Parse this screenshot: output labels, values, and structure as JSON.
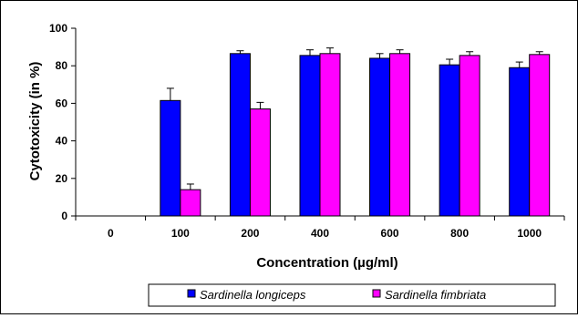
{
  "chart_data": {
    "type": "bar",
    "xlabel": "Concentration (µg/ml)",
    "ylabel": "Cytotoxicity (in %)",
    "ylim": [
      0,
      100
    ],
    "yticks": [
      "0",
      "20",
      "40",
      "60",
      "80",
      "100"
    ],
    "categories": [
      "0",
      "100",
      "200",
      "400",
      "600",
      "800",
      "1000"
    ],
    "grid": false,
    "legend_position": "bottom",
    "series": [
      {
        "name": "Sardinella longiceps",
        "color": "#0000ff",
        "values": [
          0,
          61.5,
          86.5,
          85.5,
          84,
          80.5,
          79
        ],
        "errors": [
          0,
          6.5,
          1.5,
          3,
          2.5,
          3,
          3
        ]
      },
      {
        "name": "Sardinella fimbriata",
        "color": "#ff00ff",
        "values": [
          0,
          14,
          57,
          86.5,
          86.5,
          85.5,
          86
        ],
        "errors": [
          0,
          3,
          3.5,
          3,
          2,
          2,
          1.5
        ]
      }
    ]
  }
}
